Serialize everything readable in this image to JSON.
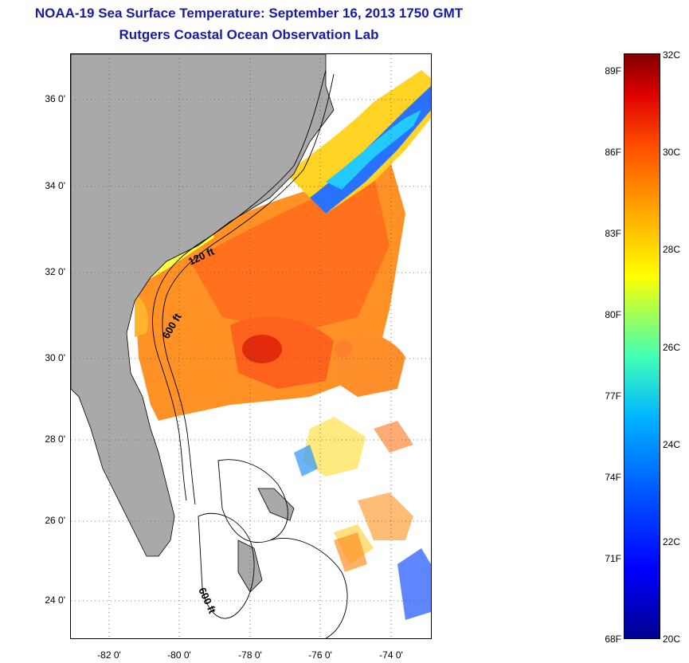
{
  "title": {
    "line1": "NOAA-19 Sea Surface Temperature:  September 16, 2013 1750 GMT",
    "line2": "Rutgers Coastal Ocean Observation Lab"
  },
  "map": {
    "lat_labels": [
      "36 0'",
      "34 0'",
      "32 0'",
      "30 0'",
      "28 0'",
      "26 0'",
      "24 0'"
    ],
    "lon_labels": [
      "-82 0'",
      "-80 0'",
      "-78 0'",
      "-76 0'",
      "-74 0'"
    ],
    "contour_labels": [
      "120 ft",
      "600 ft",
      "600 ft"
    ],
    "colors": {
      "land": "#a9a9a9",
      "frame": "#000000",
      "grid": "#555555"
    }
  },
  "colorbar": {
    "fahrenheit_labels": [
      "89F",
      "86F",
      "83F",
      "80F",
      "77F",
      "74F",
      "71F",
      "68F"
    ],
    "celsius_labels": [
      "32C",
      "30C",
      "28C",
      "26C",
      "24C",
      "22C",
      "20C"
    ],
    "range_c": [
      20,
      32
    ]
  }
}
